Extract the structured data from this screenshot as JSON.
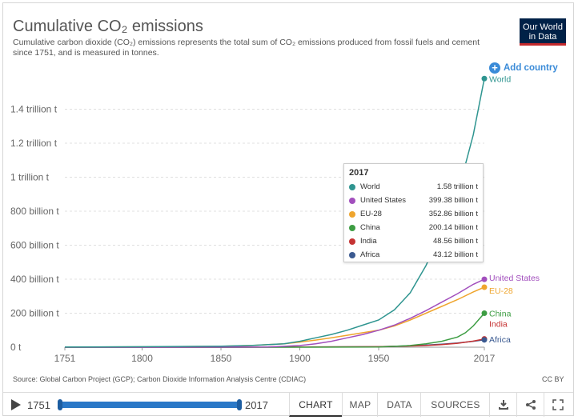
{
  "header": {
    "title": "Cumulative CO₂ emissions",
    "subtitle": "Cumulative carbon dioxide (CO₂) emissions represents the total sum of CO₂ emissions produced from fossil fuels and cement since 1751, and is measured in tonnes.",
    "logo_line1": "Our World",
    "logo_line2": "in Data",
    "add_country": "Add country"
  },
  "colors": {
    "World": "#2f9590",
    "United States": "#a24fbd",
    "EU-28": "#efa52e",
    "China": "#3d9d43",
    "India": "#c53333",
    "Africa": "#3b5a91"
  },
  "chart_data": {
    "type": "line",
    "title": "Cumulative CO₂ emissions",
    "xlabel": "",
    "ylabel": "",
    "xlim": [
      1751,
      2017
    ],
    "ylim": [
      0,
      1600000000000
    ],
    "x_ticks": [
      1751,
      1800,
      1850,
      1900,
      1950,
      2017
    ],
    "y_ticks": [
      {
        "value": 0,
        "label": "0 t"
      },
      {
        "value": 200000000000,
        "label": "200 billion t"
      },
      {
        "value": 400000000000,
        "label": "400 billion t"
      },
      {
        "value": 600000000000,
        "label": "600 billion t"
      },
      {
        "value": 800000000000,
        "label": "800 billion t"
      },
      {
        "value": 1000000000000,
        "label": "1 trillion t"
      },
      {
        "value": 1200000000000,
        "label": "1.2 trillion t"
      },
      {
        "value": 1400000000000,
        "label": "1.4 trillion t"
      }
    ],
    "series": [
      {
        "name": "World",
        "x": [
          1751,
          1800,
          1850,
          1870,
          1880,
          1890,
          1900,
          1910,
          1920,
          1930,
          1940,
          1950,
          1960,
          1970,
          1980,
          1990,
          2000,
          2010,
          2017
        ],
        "y": [
          0.001,
          0.003,
          0.006,
          0.011,
          0.015,
          0.02,
          0.035,
          0.055,
          0.075,
          0.1,
          0.13,
          0.16,
          0.22,
          0.32,
          0.48,
          0.68,
          0.9,
          1.25,
          1.58
        ]
      },
      {
        "name": "United States",
        "x": [
          1751,
          1800,
          1850,
          1870,
          1880,
          1890,
          1900,
          1910,
          1920,
          1930,
          1940,
          1950,
          1960,
          1970,
          1980,
          1990,
          2000,
          2010,
          2017
        ],
        "y": [
          0,
          0,
          0.0005,
          0.001,
          0.002,
          0.005,
          0.01,
          0.02,
          0.035,
          0.055,
          0.075,
          0.1,
          0.13,
          0.17,
          0.215,
          0.265,
          0.315,
          0.37,
          0.39938
        ]
      },
      {
        "name": "EU-28",
        "x": [
          1751,
          1800,
          1850,
          1870,
          1880,
          1890,
          1900,
          1910,
          1920,
          1930,
          1940,
          1950,
          1960,
          1970,
          1980,
          1990,
          2000,
          2010,
          2017
        ],
        "y": [
          0.001,
          0.002,
          0.005,
          0.01,
          0.015,
          0.02,
          0.03,
          0.042,
          0.055,
          0.07,
          0.085,
          0.1,
          0.125,
          0.16,
          0.2,
          0.24,
          0.28,
          0.325,
          0.35286
        ]
      },
      {
        "name": "China",
        "x": [
          1751,
          1850,
          1900,
          1950,
          1960,
          1970,
          1980,
          1990,
          2000,
          2005,
          2010,
          2017
        ],
        "y": [
          0,
          0,
          0,
          0.001,
          0.005,
          0.01,
          0.02,
          0.035,
          0.06,
          0.085,
          0.125,
          0.20014
        ]
      },
      {
        "name": "India",
        "x": [
          1751,
          1850,
          1900,
          1950,
          1960,
          1970,
          1980,
          1990,
          2000,
          2010,
          2017
        ],
        "y": [
          0,
          0,
          0.001,
          0.003,
          0.005,
          0.007,
          0.01,
          0.015,
          0.023,
          0.036,
          0.04856
        ]
      },
      {
        "name": "Africa",
        "x": [
          1751,
          1850,
          1900,
          1950,
          1960,
          1970,
          1980,
          1990,
          2000,
          2010,
          2017
        ],
        "y": [
          0,
          0,
          0.001,
          0.003,
          0.005,
          0.008,
          0.012,
          0.018,
          0.025,
          0.035,
          0.04312
        ]
      }
    ],
    "y_scale_unit_note": "series y values are in trillion tonnes",
    "series_labels": [
      "World",
      "United States",
      "EU-28",
      "China",
      "India",
      "Africa"
    ]
  },
  "tooltip": {
    "year": "2017",
    "rows": [
      {
        "name": "World",
        "value": "1.58 trillion t"
      },
      {
        "name": "United States",
        "value": "399.38 billion t"
      },
      {
        "name": "EU-28",
        "value": "352.86 billion t"
      },
      {
        "name": "China",
        "value": "200.14 billion t"
      },
      {
        "name": "India",
        "value": "48.56 billion t"
      },
      {
        "name": "Africa",
        "value": "43.12 billion t"
      }
    ]
  },
  "footer": {
    "source": "Source: Global Carbon Project (GCP); Carbon Dioxide Information Analysis Centre (CDIAC)",
    "license": "CC BY"
  },
  "controls": {
    "start_year": "1751",
    "end_year": "2017",
    "tabs": [
      "CHART",
      "MAP",
      "DATA",
      "SOURCES"
    ],
    "active_tab": "CHART"
  }
}
